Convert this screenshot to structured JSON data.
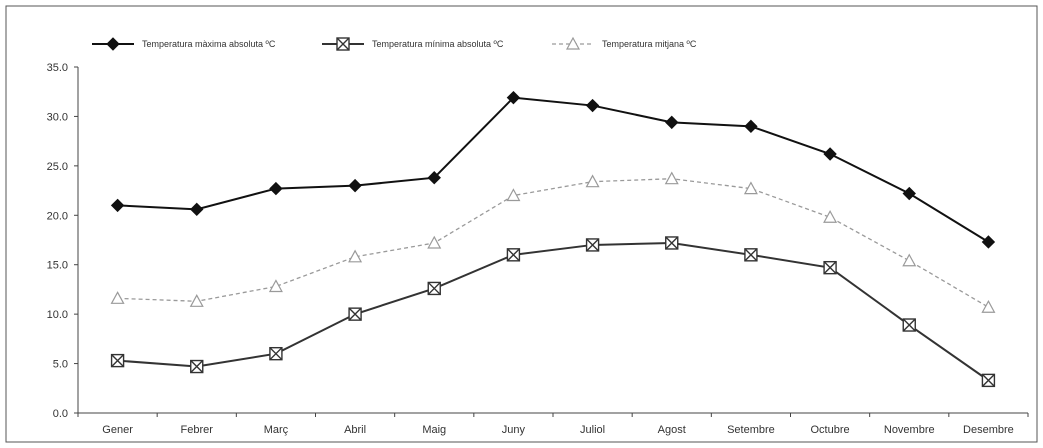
{
  "chart_data": {
    "type": "line",
    "categories": [
      "Gener",
      "Febrer",
      "Març",
      "Abril",
      "Maig",
      "Juny",
      "Juliol",
      "Agost",
      "Setembre",
      "Octubre",
      "Novembre",
      "Desembre"
    ],
    "series": [
      {
        "name": "Temperatura màxima absoluta ºC",
        "values": [
          21.0,
          20.6,
          22.7,
          23.0,
          23.8,
          31.9,
          31.1,
          29.4,
          29.0,
          26.2,
          22.2,
          17.3
        ],
        "color": "#111111",
        "marker": "diamond",
        "line_style": "solid"
      },
      {
        "name": "Temperatura mínima absoluta ºC",
        "values": [
          5.3,
          4.7,
          6.0,
          10.0,
          12.6,
          16.0,
          17.0,
          17.2,
          16.0,
          14.7,
          8.9,
          3.3
        ],
        "color": "#333333",
        "marker": "square-x",
        "line_style": "solid"
      },
      {
        "name": "Temperatura mitjana ºC",
        "values": [
          11.6,
          11.3,
          12.8,
          15.8,
          17.2,
          22.0,
          23.4,
          23.7,
          22.7,
          19.8,
          15.4,
          10.7
        ],
        "color": "#9a9a9a",
        "marker": "triangle",
        "line_style": "dashed"
      }
    ],
    "y_ticks": [
      "0.0",
      "5.0",
      "10.0",
      "15.0",
      "20.0",
      "25.0",
      "30.0",
      "35.0"
    ],
    "ylim": [
      0,
      35
    ],
    "grid": false,
    "legend_position": "top"
  }
}
